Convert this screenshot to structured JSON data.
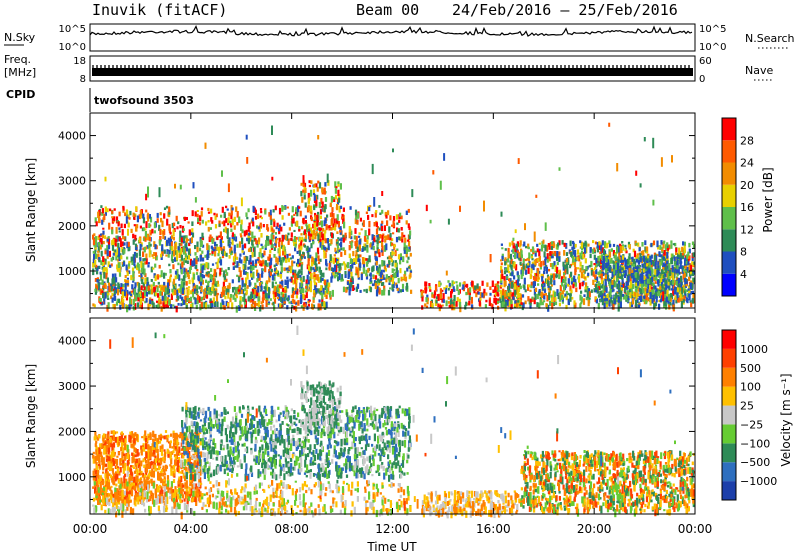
{
  "header": {
    "station": "Inuvik (fitACF)",
    "beam": "Beam 00",
    "date_range": "24/Feb/2016 – 25/Feb/2016"
  },
  "strips": {
    "nsky": {
      "label": "N.Sky",
      "ticks": [
        "10^5",
        "10^0"
      ],
      "right_label": "N.Search",
      "right_ticks": [
        "10^5",
        "10^0"
      ]
    },
    "freq": {
      "label_top": "Freq.",
      "label_bottom": "[MHz]",
      "ticks": [
        "18",
        "8"
      ],
      "right_label": "Nave",
      "right_ticks": [
        "60",
        "0"
      ]
    },
    "cpid": {
      "label": "CPID",
      "program": "twofsound 3503"
    }
  },
  "chart_data": [
    {
      "type": "heatmap",
      "name": "power",
      "ylabel": "Slant Range [km]",
      "xlabel": "",
      "yticks": [
        1000,
        2000,
        3000,
        4000
      ],
      "ylim": [
        180,
        4500
      ],
      "colorbar": {
        "label": "Power [dB]",
        "ticks": [
          "4",
          "8",
          "12",
          "16",
          "20",
          "24",
          "28"
        ],
        "colors": [
          "#0000ff",
          "#1f4fbf",
          "#2e8b57",
          "#5fbf4a",
          "#e8d000",
          "#f28c00",
          "#ff5a00",
          "#ff0000"
        ]
      }
    },
    {
      "type": "heatmap",
      "name": "velocity",
      "ylabel": "Slant Range [km]",
      "xlabel": "Time UT",
      "xticks": [
        "00:00",
        "04:00",
        "08:00",
        "12:00",
        "16:00",
        "20:00",
        "00:00"
      ],
      "yticks": [
        1000,
        2000,
        3000,
        4000
      ],
      "ylim": [
        180,
        4500
      ],
      "colorbar": {
        "label": "Velocity [m s⁻¹]",
        "ticks": [
          "1000",
          "500",
          "100",
          "25",
          "−25",
          "−100",
          "−500",
          "−1000"
        ],
        "colors": [
          "#1c3faa",
          "#2e6fbf",
          "#2e8b57",
          "#66cc33",
          "#c8c8c8",
          "#ffc000",
          "#ff8000",
          "#ff4000",
          "#ff0000"
        ]
      }
    }
  ]
}
